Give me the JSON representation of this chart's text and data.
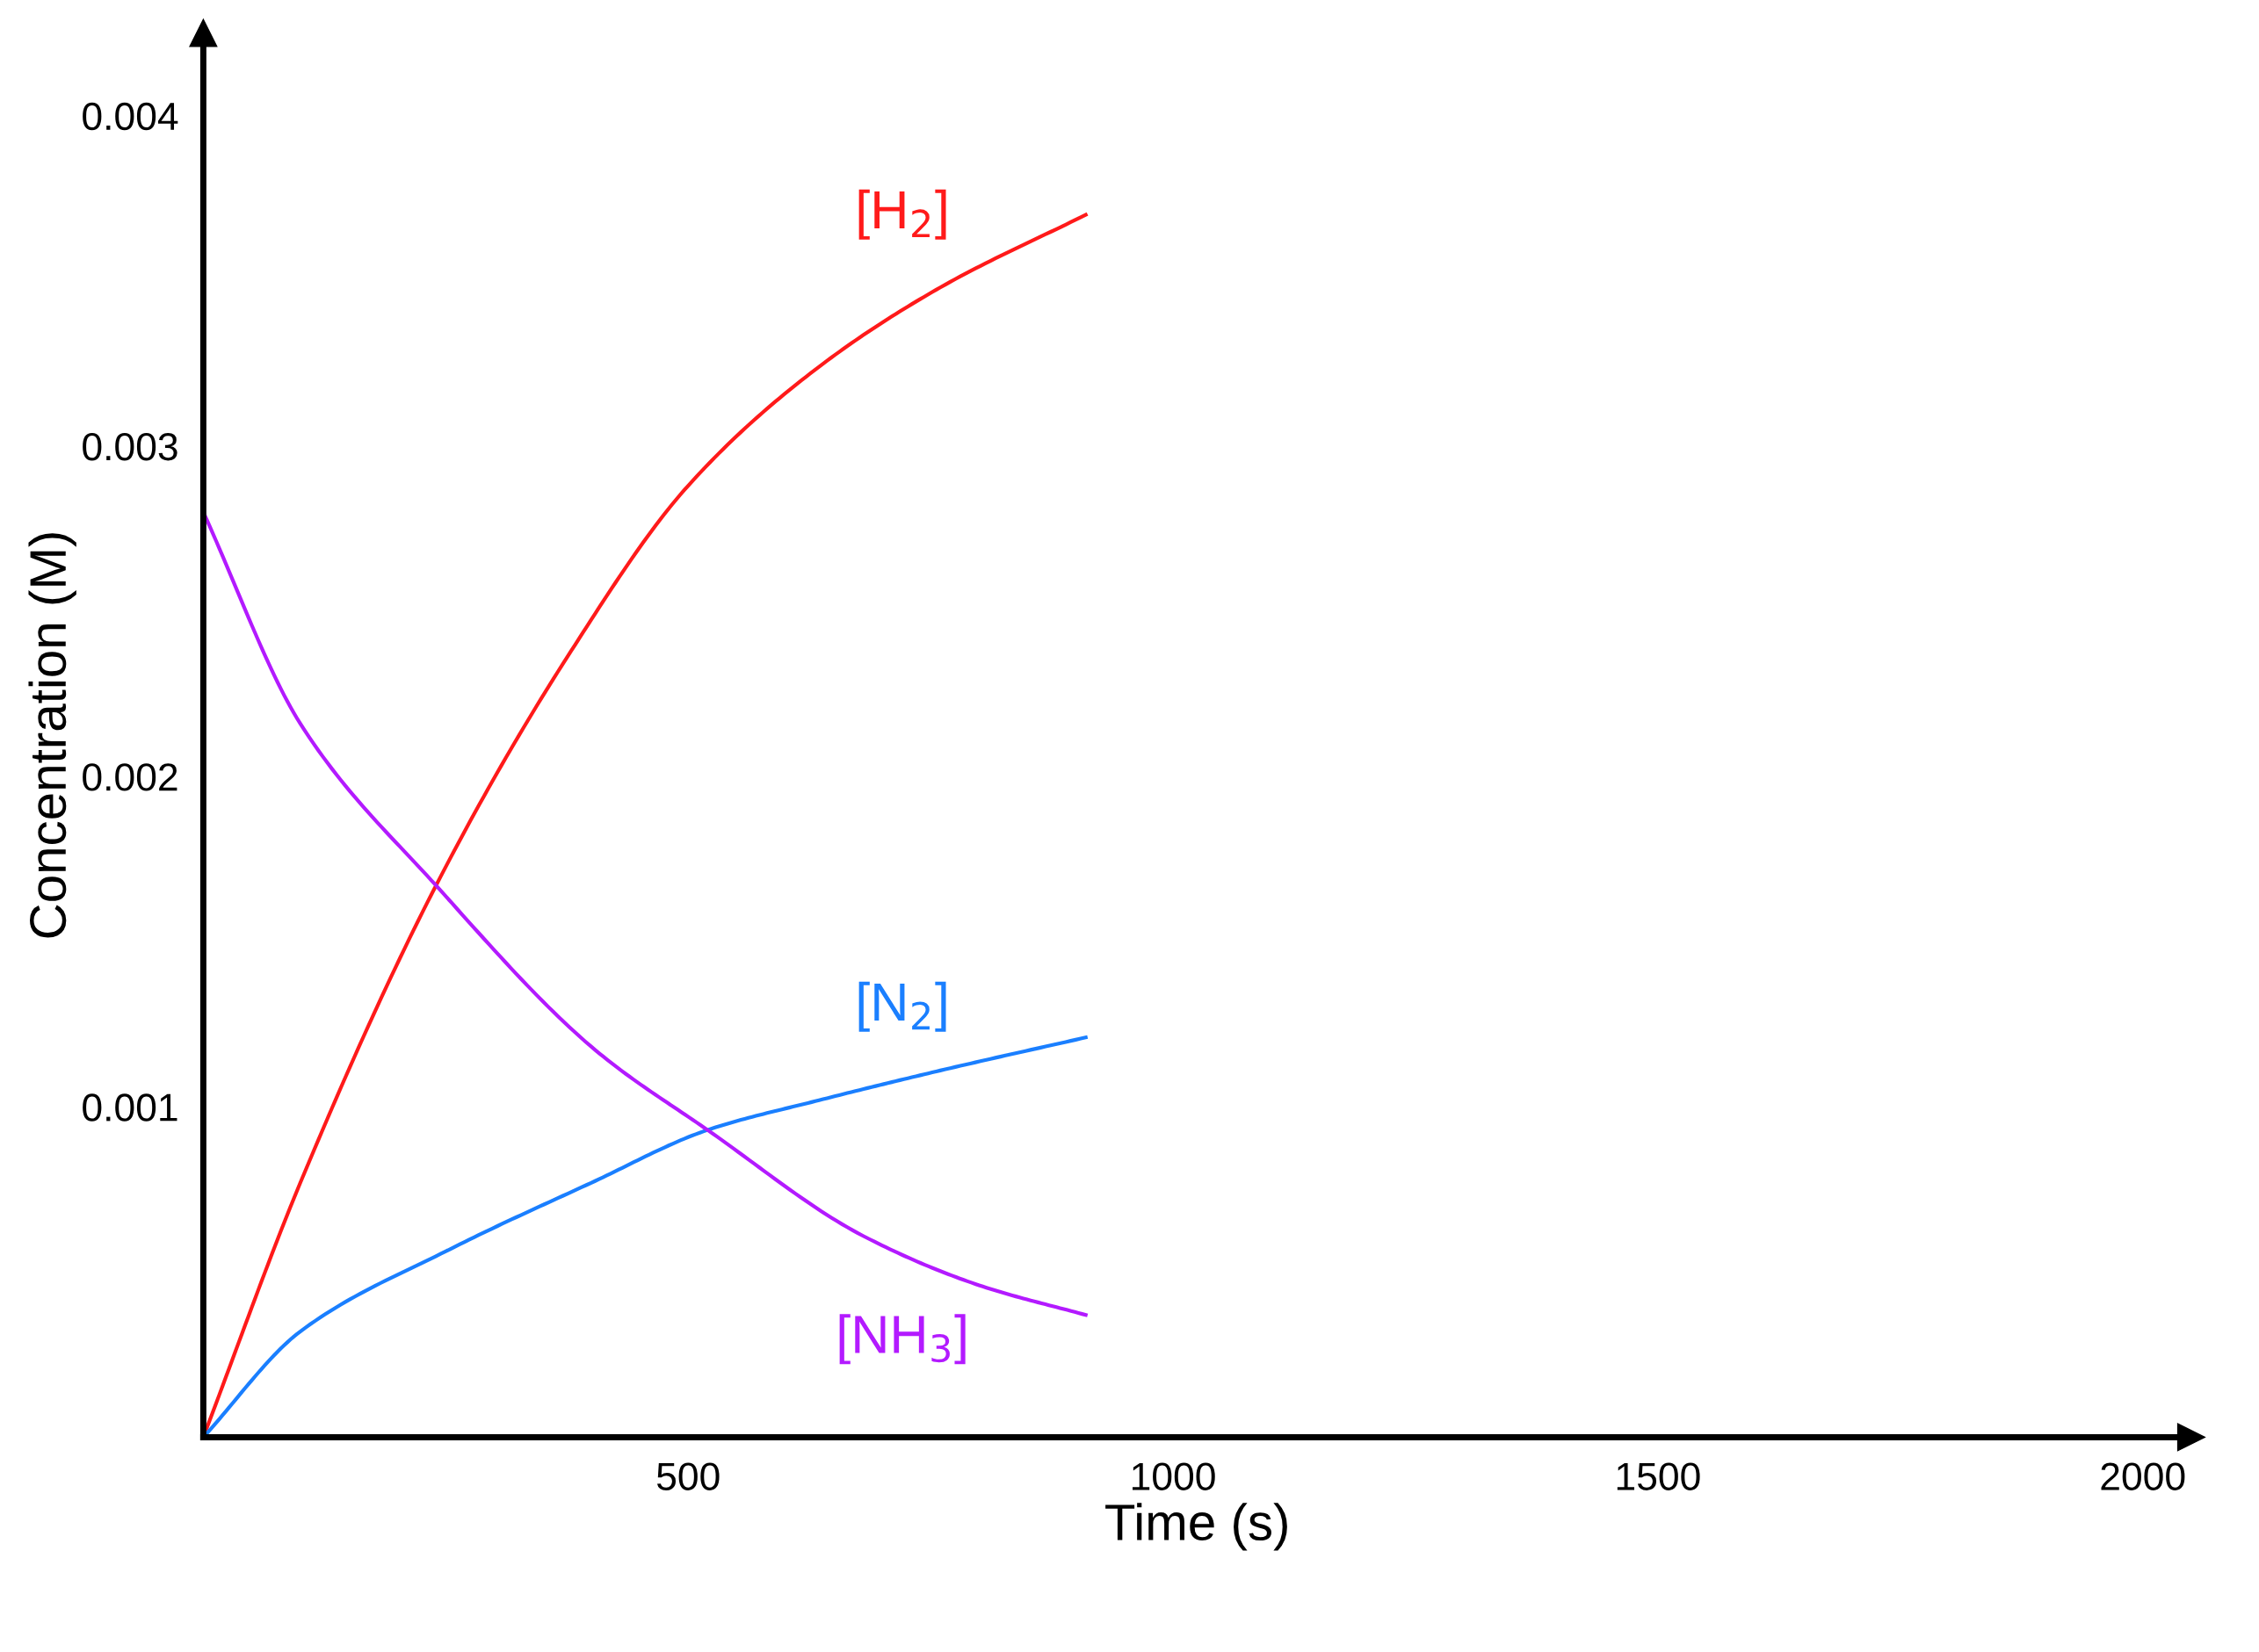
{
  "chart_data": {
    "type": "line",
    "xlabel": "Time (s)",
    "ylabel": "Concentration (M)",
    "xlim": [
      0,
      2050
    ],
    "ylim": [
      0,
      0.00425
    ],
    "xticks": [
      500,
      1000,
      1500,
      2000
    ],
    "yticks": [
      0.001,
      0.002,
      0.003,
      0.004
    ],
    "grid": false,
    "legend": false,
    "marker": "none",
    "line_style": "solid",
    "series": [
      {
        "name": "[H$_{2}$]",
        "color": "#ff1a1a",
        "x": [
          0,
          100,
          240,
          375,
          500,
          635,
          760,
          910
        ],
        "values": [
          0,
          0.00077,
          0.00167,
          0.00236,
          0.00288,
          0.00324,
          0.00348,
          0.0037
        ]
      },
      {
        "name": "[N$_{2}$]",
        "color": "#1a7fff",
        "x": [
          0,
          100,
          255,
          400,
          520,
          635,
          760,
          910
        ],
        "values": [
          0,
          0.00032,
          0.00057,
          0.00077,
          0.00093,
          0.00102,
          0.00111,
          0.00121
        ]
      },
      {
        "name": "[NH$_{3}$]",
        "color": "#b31aff",
        "x": [
          0,
          100,
          240,
          405,
          520,
          680,
          800,
          910
        ],
        "values": [
          0.0028,
          0.00216,
          0.00167,
          0.00117,
          0.00093,
          0.00061,
          0.00046,
          0.00037
        ]
      }
    ]
  }
}
